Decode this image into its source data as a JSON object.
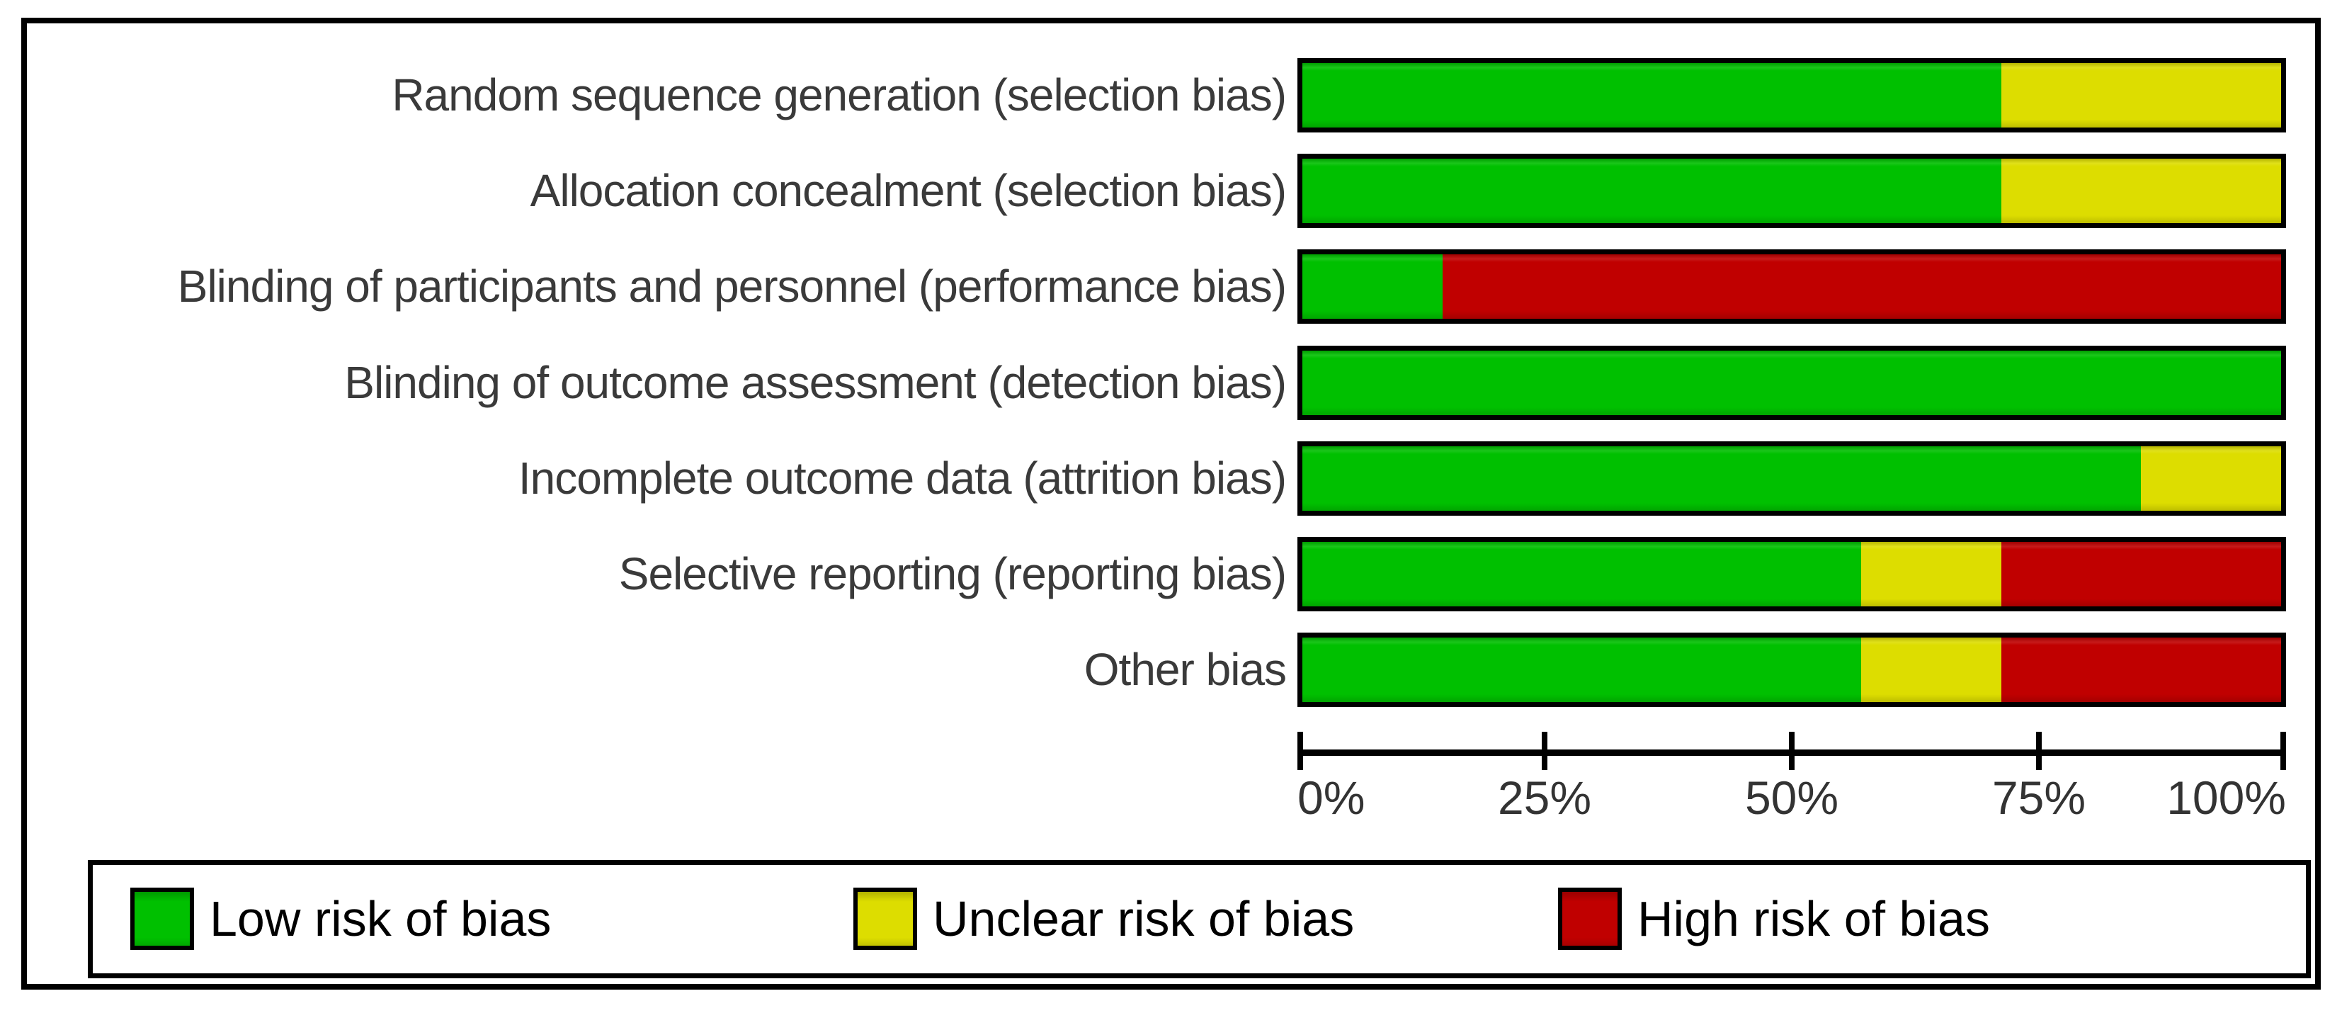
{
  "colors": {
    "low": "#00C000",
    "unclear": "#DDDD00",
    "high": "#C00000",
    "border": "#000000",
    "label_text": "#3A3A3A",
    "legend_text": "#000000"
  },
  "axis": {
    "ticks": [
      "0%",
      "25%",
      "50%",
      "75%",
      "100%"
    ]
  },
  "legend": {
    "items": [
      {
        "key": "low",
        "label": "Low risk of bias"
      },
      {
        "key": "unclear",
        "label": "Unclear risk of bias"
      },
      {
        "key": "high",
        "label": "High risk of bias"
      }
    ]
  },
  "chart_data": {
    "type": "bar",
    "orientation": "horizontal",
    "stacked": true,
    "categories": [
      "Random sequence generation (selection bias)",
      "Allocation concealment (selection bias)",
      "Blinding of participants and personnel (performance bias)",
      "Blinding of outcome assessment (detection bias)",
      "Incomplete outcome data (attrition bias)",
      "Selective reporting (reporting bias)",
      "Other bias"
    ],
    "series": [
      {
        "name": "Low risk of bias",
        "key": "low",
        "values": [
          71.4,
          71.4,
          14.3,
          100,
          85.7,
          57.1,
          57.1
        ]
      },
      {
        "name": "Unclear risk of bias",
        "key": "unclear",
        "values": [
          28.6,
          28.6,
          0,
          0,
          14.3,
          14.3,
          14.3
        ]
      },
      {
        "name": "High risk of bias",
        "key": "high",
        "values": [
          0,
          0,
          85.7,
          0,
          0,
          28.6,
          28.6
        ]
      }
    ],
    "xlim": [
      0,
      100
    ],
    "x_tick_labels": [
      "0%",
      "25%",
      "50%",
      "75%",
      "100%"
    ],
    "x_tick_values": [
      0,
      25,
      50,
      75,
      100
    ],
    "legend_position": "bottom",
    "grid": false
  }
}
